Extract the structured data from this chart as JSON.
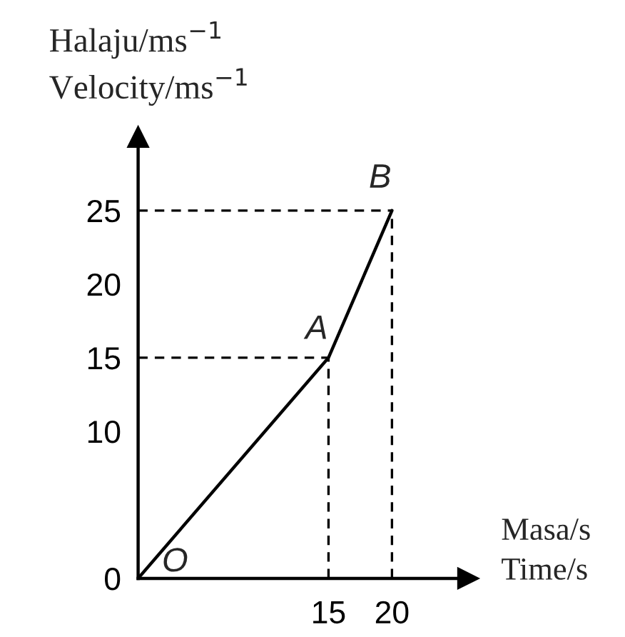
{
  "chart_data": {
    "type": "line",
    "xlabel": "Masa/s\nTime/s",
    "ylabel": "Halaju/ms$^{−1}$\nVelocity/ms$^{−1}$",
    "xlim": [
      0,
      26
    ],
    "ylim": [
      0,
      30
    ],
    "xticks": [
      15,
      20
    ],
    "yticks": [
      0,
      10,
      15,
      20,
      25
    ],
    "grid": false,
    "legend": false,
    "marker": "none",
    "series": [
      {
        "color": "#000000",
        "x": [
          0,
          15,
          20
        ],
        "values": [
          0,
          15,
          25
        ],
        "line_style": "solid"
      },
      {
        "color": "#000000",
        "x": [
          0,
          15
        ],
        "values": [
          15,
          15
        ],
        "line_style": "dashed"
      },
      {
        "color": "#000000",
        "x": [
          15,
          15
        ],
        "values": [
          0,
          15
        ],
        "line_style": "dashed"
      },
      {
        "color": "#000000",
        "x": [
          0,
          20
        ],
        "values": [
          25,
          25
        ],
        "line_style": "dashed"
      },
      {
        "color": "#000000",
        "x": [
          20,
          20
        ],
        "values": [
          0,
          25
        ],
        "line_style": "dashed"
      }
    ],
    "annotations": [
      {
        "text": "O",
        "x": 0,
        "y": 0
      },
      {
        "text": "A",
        "x": 15,
        "y": 15
      },
      {
        "text": "B",
        "x": 20,
        "y": 25
      }
    ]
  }
}
